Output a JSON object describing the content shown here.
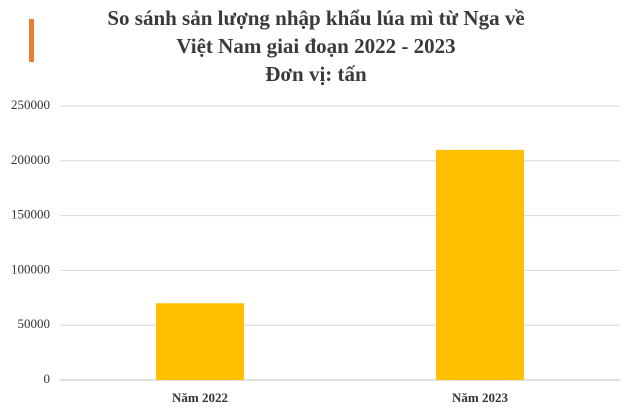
{
  "chart_data": {
    "type": "bar",
    "title": [
      "So sánh sản lượng nhập khẩu lúa mì từ Nga về",
      "Việt Nam giai đoạn 2022 - 2023"
    ],
    "subtitle": "Đơn vị: tấn",
    "categories": [
      "Năm 2022",
      "Năm 2023"
    ],
    "values": [
      70000,
      210000
    ],
    "color": "#ffc000",
    "ylim": [
      0,
      250000
    ],
    "yticks": [
      0,
      50000,
      100000,
      150000,
      200000,
      250000
    ],
    "grid": true
  }
}
